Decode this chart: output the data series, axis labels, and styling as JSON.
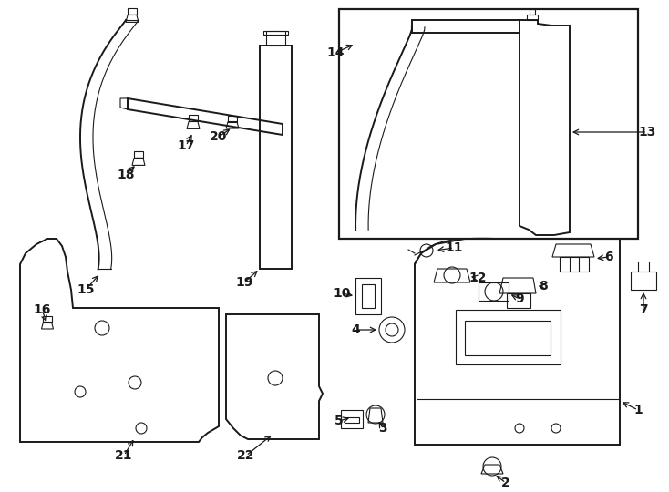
{
  "bg_color": "#ffffff",
  "lc": "#1a1a1a",
  "figsize": [
    7.34,
    5.4
  ],
  "dpi": 100
}
